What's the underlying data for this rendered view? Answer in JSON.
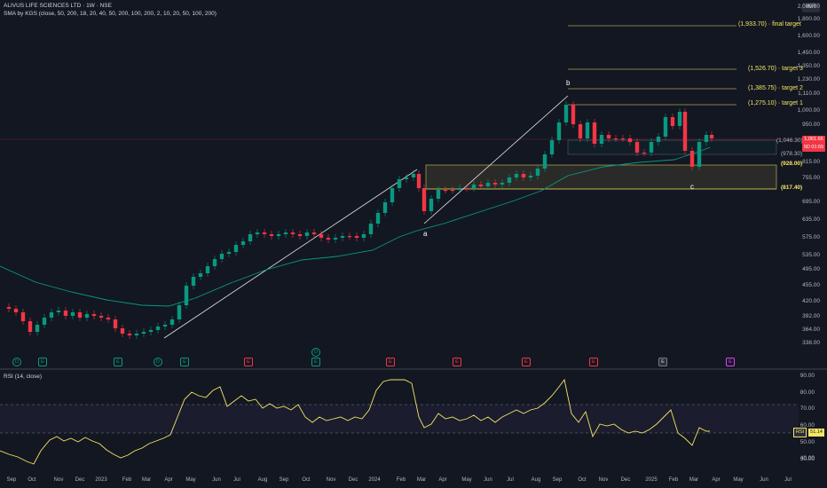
{
  "header": {
    "symbol_line": "ALIVUS LIFE SCIENCES LTD · 1W · NSE",
    "indicator_line": "SMA by KGS (close, 50, 200, 18, 20, 40, 50, 200, 100, 200, 2, 10, 20, 50, 100, 200)"
  },
  "currency": "INR",
  "price_axis": [
    "2,000.00",
    "1,800.00",
    "1,600.00",
    "1,450.00",
    "1,350.00",
    "1,230.00",
    "1,110.00",
    "1,000.00",
    "950.00",
    "875.00",
    "815.00",
    "755.00",
    "695.00",
    "635.00",
    "575.00",
    "535.00",
    "495.00",
    "455.00",
    "420.00",
    "392.00",
    "364.00",
    "338.00"
  ],
  "targets": [
    {
      "label": "(1,933.70) · final target"
    },
    {
      "label": "(1,526.70) · target 3"
    },
    {
      "label": "(1,385.75) · target 2"
    },
    {
      "label": "(1,275.10) · target 1"
    }
  ],
  "levels": {
    "l1046": "(1,046.30)",
    "l978": "(978.30)",
    "l928": "(928.00)",
    "l817": "(817.40)"
  },
  "last_price": {
    "line1": "1,061.65",
    "line2": "5D 01:55"
  },
  "waves": {
    "a": "a",
    "b": "b",
    "c": "c"
  },
  "rsi": {
    "title": "RSI (14, close)",
    "ticks": [
      "90.00",
      "80.00",
      "70.00",
      "60.00",
      "50.00",
      "40.00",
      "30.00"
    ],
    "tag": "RSI",
    "value": "51.14"
  },
  "months": [
    "Sep",
    "Oct",
    "Nov",
    "Dec",
    "2023",
    "Feb",
    "Mar",
    "Apr",
    "May",
    "Jun",
    "Jul",
    "Aug",
    "Sep",
    "Oct",
    "Nov",
    "Dec",
    "2024",
    "Feb",
    "Mar",
    "Apr",
    "May",
    "Jun",
    "Jul",
    "Aug",
    "Sep",
    "Oct",
    "Nov",
    "Dec",
    "2025",
    "Feb",
    "Mar",
    "Apr",
    "May",
    "Jun",
    "Jul"
  ],
  "events": [
    {
      "t": "D",
      "c": "green round"
    },
    {
      "t": "E",
      "c": "green"
    },
    {
      "t": "E",
      "c": "green"
    },
    {
      "t": "D",
      "c": "green round"
    },
    {
      "t": "E",
      "c": "green"
    },
    {
      "t": "E",
      "c": "red"
    },
    {
      "t": "E",
      "c": "green"
    },
    {
      "t": "E",
      "c": "red"
    },
    {
      "t": "E",
      "c": "red"
    },
    {
      "t": "E",
      "c": "red"
    },
    {
      "t": "E",
      "c": "red"
    },
    {
      "t": "E",
      "c": "gray"
    },
    {
      "t": "E",
      "c": "mag"
    }
  ],
  "event_extra": {
    "t": "D"
  },
  "colors": {
    "bg": "#131722",
    "up": "#089981",
    "down": "#f23645",
    "target": "#f5e663",
    "sma": "#089981",
    "rsi": "#f5e663"
  }
}
